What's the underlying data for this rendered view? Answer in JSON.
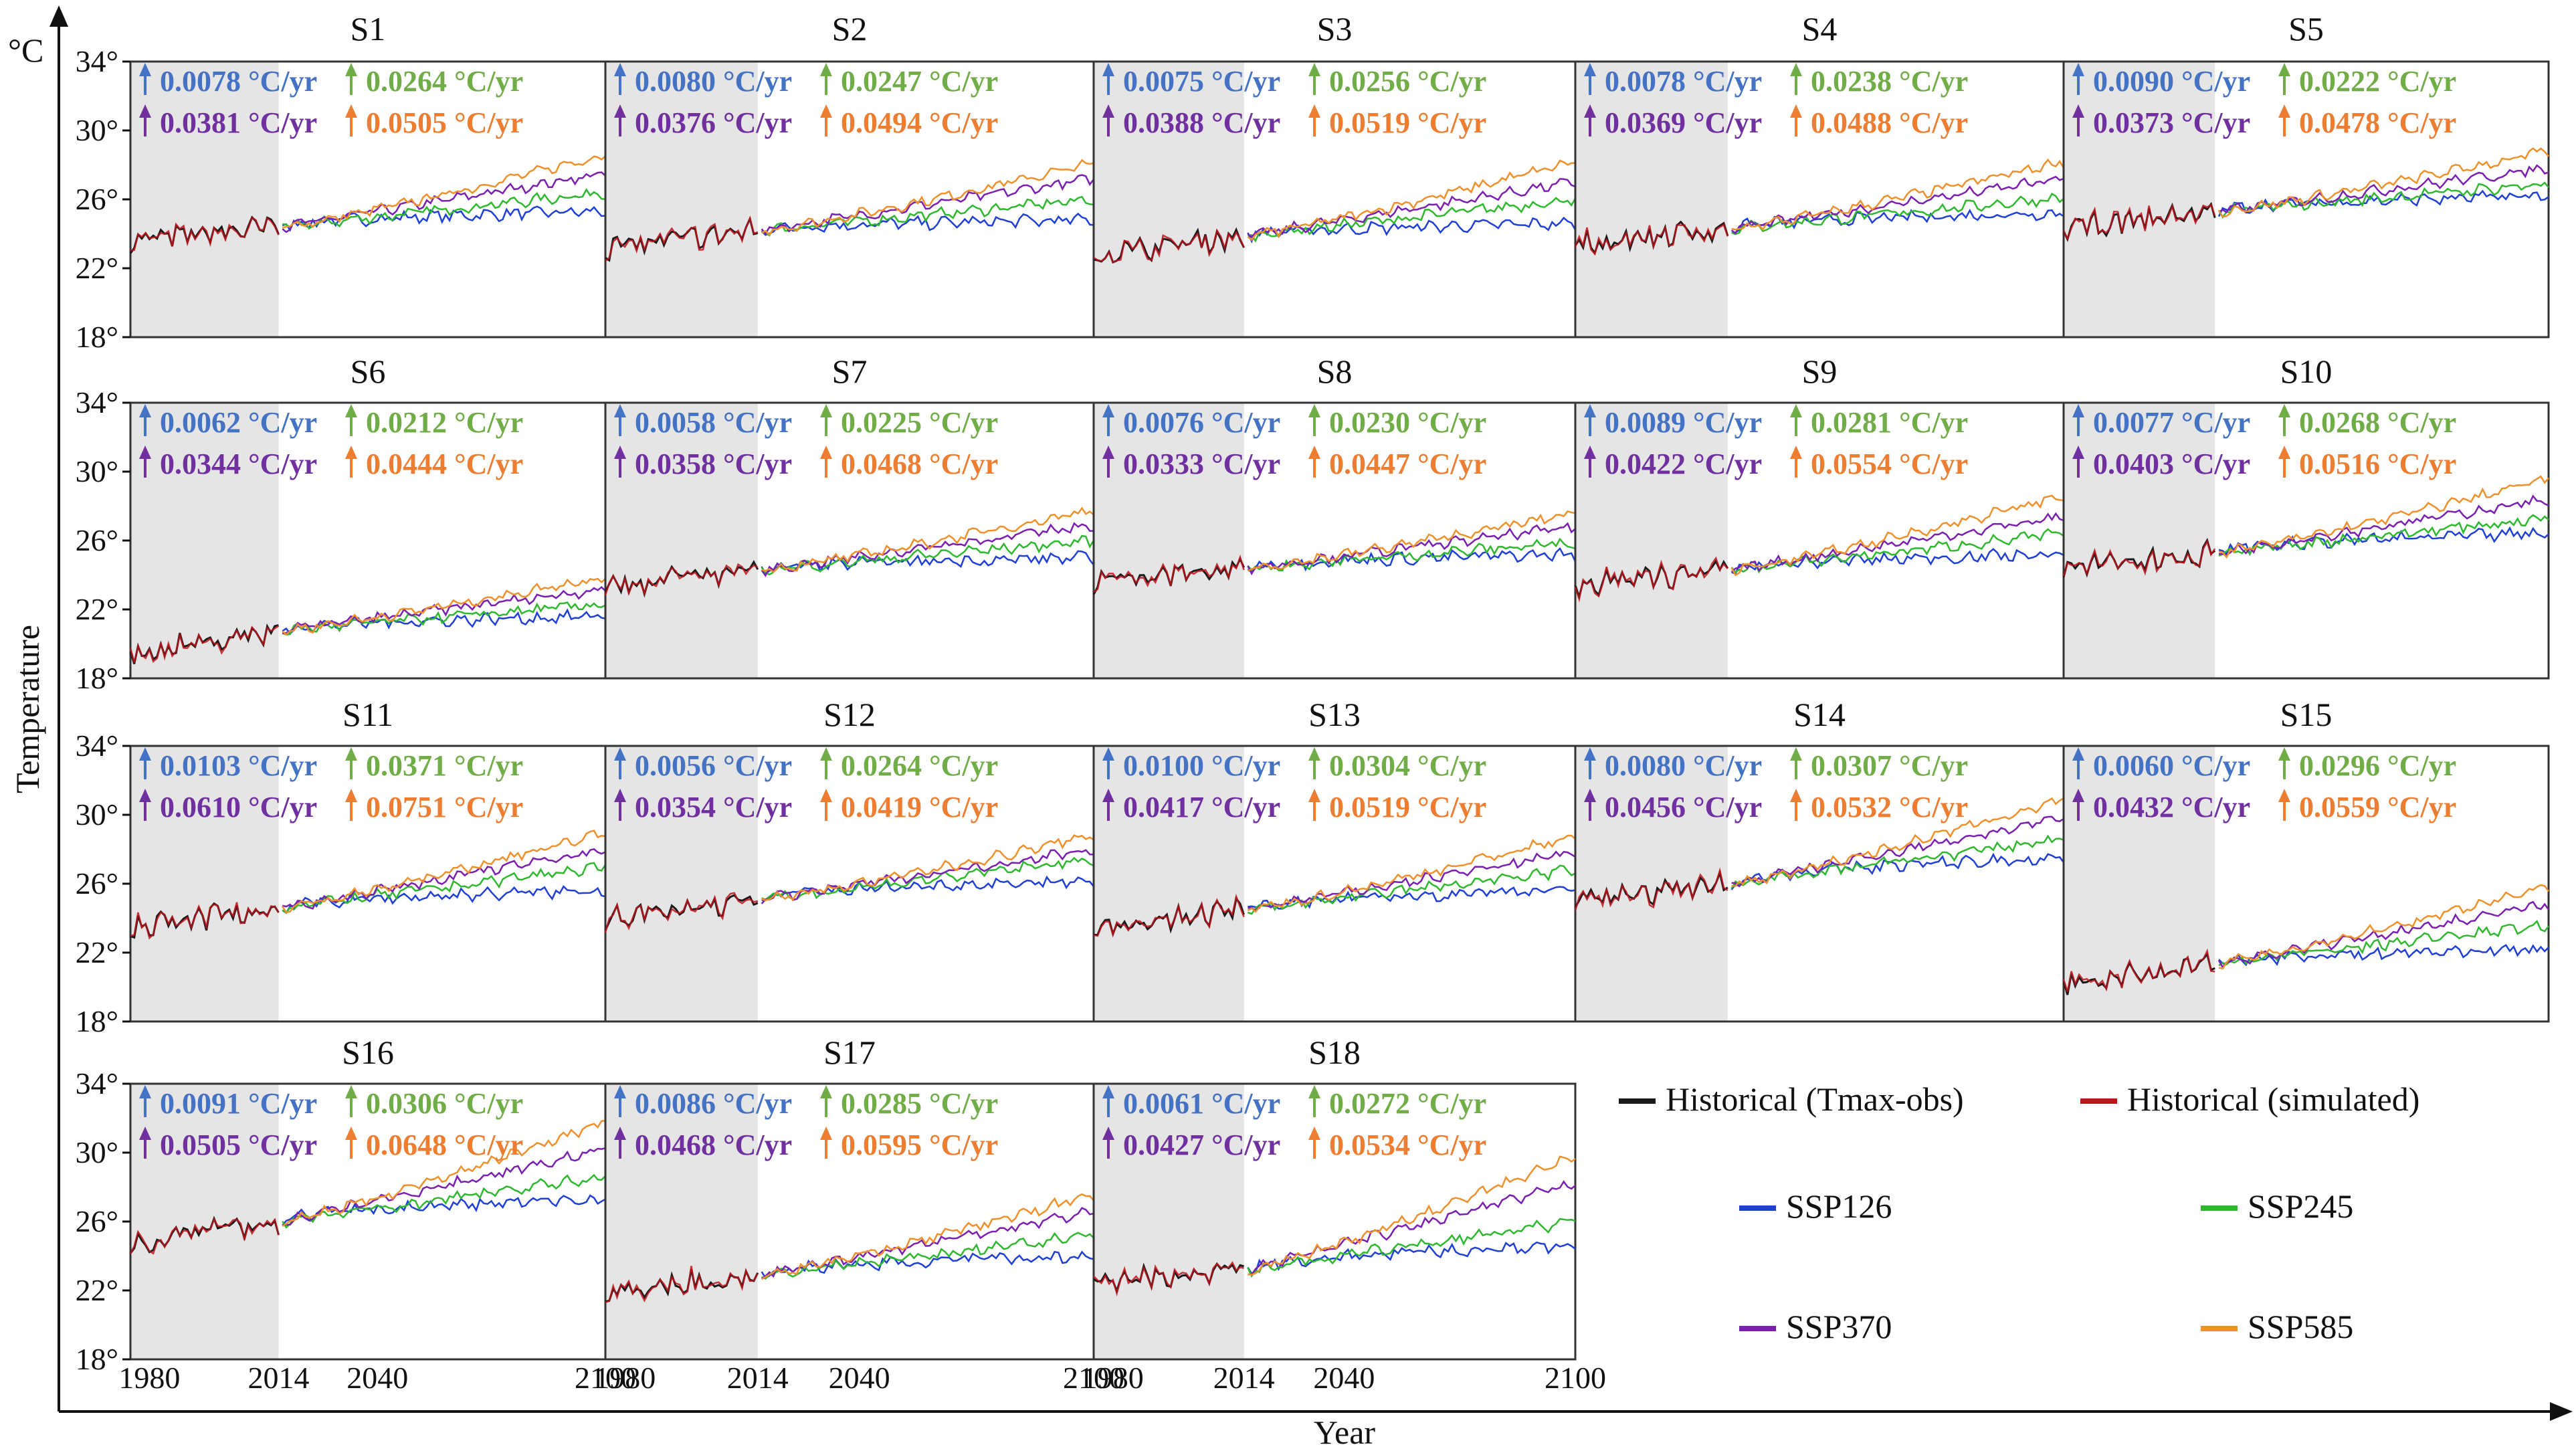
{
  "chart_data": {
    "type": "line",
    "x_label": "Year",
    "y_label": "Temperature",
    "y_unit": "°C",
    "ylim": [
      18,
      34
    ],
    "xlim": [
      1975,
      2100
    ],
    "y_ticks": [
      18,
      22,
      26,
      30,
      34
    ],
    "y_tick_labels": [
      "18°",
      "22°",
      "26°",
      "30°",
      "34°"
    ],
    "x_ticks": [
      1980,
      2014,
      2040,
      2100
    ],
    "x_tick_labels": [
      "1980",
      "2014",
      "2040",
      "2100"
    ],
    "historical_shading": [
      1975,
      2014
    ],
    "trend_unit": "°C/yr",
    "colors": {
      "obs": "#1a1a1a",
      "simulated": "#c0141c",
      "ssp126": "#1f3fd6",
      "ssp245": "#2eb82e",
      "ssp370": "#7a1fb0",
      "ssp585": "#f0902a",
      "trend126": "#4472c4",
      "trend245": "#70ad47",
      "trend370": "#7030a0",
      "trend585": "#ed7d31",
      "shade": "#e5e5e5"
    },
    "legend": [
      {
        "key": "obs",
        "label": "Historical (Tmax-obs)"
      },
      {
        "key": "simulated",
        "label": "Historical (simulated)"
      },
      {
        "key": "ssp126",
        "label": "SSP126"
      },
      {
        "key": "ssp245",
        "label": "SSP245"
      },
      {
        "key": "ssp370",
        "label": "SSP370"
      },
      {
        "key": "ssp585",
        "label": "SSP585"
      }
    ],
    "panels": [
      {
        "title": "S1",
        "start": 23.6,
        "end2014": 24.4,
        "end": {
          "ssp126": 25.3,
          "ssp245": 26.4,
          "ssp370": 27.5,
          "ssp585": 28.6
        },
        "trends": {
          "ssp126": "0.0078",
          "ssp245": "0.0264",
          "ssp370": "0.0381",
          "ssp585": "0.0505"
        }
      },
      {
        "title": "S2",
        "start": 23.2,
        "end2014": 24.2,
        "end": {
          "ssp126": 24.8,
          "ssp245": 26.0,
          "ssp370": 27.2,
          "ssp585": 28.1
        },
        "trends": {
          "ssp126": "0.0080",
          "ssp245": "0.0247",
          "ssp370": "0.0376",
          "ssp585": "0.0494"
        }
      },
      {
        "title": "S3",
        "start": 22.8,
        "end2014": 23.9,
        "end": {
          "ssp126": 24.6,
          "ssp245": 26.0,
          "ssp370": 27.0,
          "ssp585": 28.2
        },
        "trends": {
          "ssp126": "0.0075",
          "ssp245": "0.0256",
          "ssp370": "0.0388",
          "ssp585": "0.0519"
        }
      },
      {
        "title": "S4",
        "start": 23.4,
        "end2014": 24.3,
        "end": {
          "ssp126": 25.2,
          "ssp245": 26.1,
          "ssp370": 27.2,
          "ssp585": 28.2
        },
        "trends": {
          "ssp126": "0.0078",
          "ssp245": "0.0238",
          "ssp370": "0.0369",
          "ssp585": "0.0488"
        }
      },
      {
        "title": "S5",
        "start": 24.3,
        "end2014": 25.3,
        "end": {
          "ssp126": 26.2,
          "ssp245": 26.9,
          "ssp370": 27.8,
          "ssp585": 28.8
        },
        "trends": {
          "ssp126": "0.0090",
          "ssp245": "0.0222",
          "ssp370": "0.0373",
          "ssp585": "0.0478"
        }
      },
      {
        "title": "S6",
        "start": 19.4,
        "end2014": 20.8,
        "end": {
          "ssp126": 21.6,
          "ssp245": 22.3,
          "ssp370": 23.2,
          "ssp585": 23.9
        },
        "trends": {
          "ssp126": "0.0062",
          "ssp245": "0.0212",
          "ssp370": "0.0344",
          "ssp585": "0.0444"
        }
      },
      {
        "title": "S7",
        "start": 23.4,
        "end2014": 24.3,
        "end": {
          "ssp126": 25.0,
          "ssp245": 26.0,
          "ssp370": 26.9,
          "ssp585": 27.8
        },
        "trends": {
          "ssp126": "0.0058",
          "ssp245": "0.0225",
          "ssp370": "0.0358",
          "ssp585": "0.0468"
        }
      },
      {
        "title": "S8",
        "start": 23.6,
        "end2014": 24.4,
        "end": {
          "ssp126": 25.2,
          "ssp245": 25.9,
          "ssp370": 26.8,
          "ssp585": 27.6
        },
        "trends": {
          "ssp126": "0.0076",
          "ssp245": "0.0230",
          "ssp370": "0.0333",
          "ssp585": "0.0447"
        }
      },
      {
        "title": "S9",
        "start": 23.4,
        "end2014": 24.3,
        "end": {
          "ssp126": 25.2,
          "ssp245": 26.4,
          "ssp370": 27.4,
          "ssp585": 28.6
        },
        "trends": {
          "ssp126": "0.0089",
          "ssp245": "0.0281",
          "ssp370": "0.0422",
          "ssp585": "0.0554"
        }
      },
      {
        "title": "S10",
        "start": 24.4,
        "end2014": 25.3,
        "end": {
          "ssp126": 26.4,
          "ssp245": 27.3,
          "ssp370": 28.4,
          "ssp585": 29.6
        },
        "trends": {
          "ssp126": "0.0077",
          "ssp245": "0.0268",
          "ssp370": "0.0403",
          "ssp585": "0.0516"
        }
      },
      {
        "title": "S11",
        "start": 23.5,
        "end2014": 24.6,
        "end": {
          "ssp126": 25.6,
          "ssp245": 27.0,
          "ssp370": 28.0,
          "ssp585": 29.0
        },
        "trends": {
          "ssp126": "0.0103",
          "ssp245": "0.0371",
          "ssp370": "0.0610",
          "ssp585": "0.0751"
        }
      },
      {
        "title": "S12",
        "start": 24.0,
        "end2014": 25.1,
        "end": {
          "ssp126": 26.2,
          "ssp245": 27.4,
          "ssp370": 28.0,
          "ssp585": 28.8
        },
        "trends": {
          "ssp126": "0.0056",
          "ssp245": "0.0264",
          "ssp370": "0.0354",
          "ssp585": "0.0419"
        }
      },
      {
        "title": "S13",
        "start": 23.4,
        "end2014": 24.5,
        "end": {
          "ssp126": 25.6,
          "ssp245": 26.8,
          "ssp370": 27.8,
          "ssp585": 28.8
        },
        "trends": {
          "ssp126": "0.0100",
          "ssp245": "0.0304",
          "ssp370": "0.0417",
          "ssp585": "0.0519"
        }
      },
      {
        "title": "S14",
        "start": 25.0,
        "end2014": 26.0,
        "end": {
          "ssp126": 27.5,
          "ssp245": 28.6,
          "ssp370": 29.8,
          "ssp585": 30.9
        },
        "trends": {
          "ssp126": "0.0080",
          "ssp245": "0.0307",
          "ssp370": "0.0456",
          "ssp585": "0.0532"
        }
      },
      {
        "title": "S15",
        "start": 20.2,
        "end2014": 21.4,
        "end": {
          "ssp126": 22.2,
          "ssp245": 23.6,
          "ssp370": 24.8,
          "ssp585": 25.9
        },
        "trends": {
          "ssp126": "0.0060",
          "ssp245": "0.0296",
          "ssp370": "0.0432",
          "ssp585": "0.0559"
        }
      },
      {
        "title": "S16",
        "start": 24.8,
        "end2014": 26.0,
        "end": {
          "ssp126": 27.3,
          "ssp245": 28.6,
          "ssp370": 30.2,
          "ssp585": 31.8
        },
        "trends": {
          "ssp126": "0.0091",
          "ssp245": "0.0306",
          "ssp370": "0.0505",
          "ssp585": "0.0648"
        }
      },
      {
        "title": "S17",
        "start": 21.9,
        "end2014": 22.9,
        "end": {
          "ssp126": 24.0,
          "ssp245": 25.2,
          "ssp370": 26.6,
          "ssp585": 27.6
        },
        "trends": {
          "ssp126": "0.0086",
          "ssp245": "0.0285",
          "ssp370": "0.0468",
          "ssp585": "0.0595"
        }
      },
      {
        "title": "S18",
        "start": 22.5,
        "end2014": 23.2,
        "end": {
          "ssp126": 24.6,
          "ssp245": 26.0,
          "ssp370": 28.2,
          "ssp585": 29.8
        },
        "trends": {
          "ssp126": "0.0061",
          "ssp245": "0.0272",
          "ssp370": "0.0427",
          "ssp585": "0.0534"
        }
      }
    ]
  }
}
